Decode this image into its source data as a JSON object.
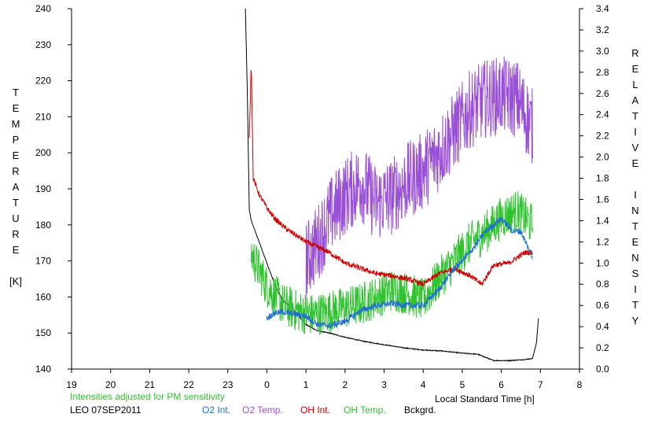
{
  "chart_data": {
    "type": "line",
    "xlabel": "Local Standard Time [h]",
    "left_axis": {
      "label": "TEMPERATURE",
      "unit": "[K]",
      "range": [
        140,
        240
      ],
      "ticks": [
        140,
        150,
        160,
        170,
        180,
        190,
        200,
        210,
        220,
        230,
        240
      ]
    },
    "right_axis": {
      "label": "RELATIVE INTENSITY",
      "range": [
        0.0,
        3.4
      ],
      "ticks": [
        "0.0",
        "0.2",
        "0.4",
        "0.6",
        "0.8",
        "1.0",
        "1.2",
        "1.4",
        "1.6",
        "1.8",
        "2.0",
        "2.2",
        "2.4",
        "2.6",
        "2.8",
        "3.0",
        "3.2",
        "3.4"
      ]
    },
    "x_range": [
      19,
      32
    ],
    "x_ticks": [
      "19",
      "20",
      "21",
      "22",
      "23",
      "0",
      "1",
      "2",
      "3",
      "4",
      "5",
      "6",
      "7",
      "8"
    ],
    "grid": false,
    "note": "Intensities adjusted for PM sensitivity",
    "station": "LEO 07SEP2011",
    "series": [
      {
        "name": "O2 Int.",
        "axis": "right",
        "color": "#1f6fd0",
        "noise": 0.03,
        "x": [
          24.0,
          24.2,
          24.4,
          24.7,
          25.0,
          25.3,
          25.6,
          26.0,
          26.4,
          26.8,
          27.2,
          27.6,
          28.0,
          28.4,
          28.8,
          29.2,
          29.6,
          30.0,
          30.3,
          30.5,
          30.8
        ],
        "y": [
          0.48,
          0.53,
          0.54,
          0.52,
          0.5,
          0.42,
          0.41,
          0.45,
          0.55,
          0.6,
          0.62,
          0.6,
          0.6,
          0.75,
          0.95,
          1.1,
          1.3,
          1.42,
          1.3,
          1.3,
          1.05
        ]
      },
      {
        "name": "O2 Temp.",
        "axis": "left",
        "color": "#9a4fd8",
        "noise": 11,
        "x": [
          25.0,
          25.3,
          25.6,
          26.0,
          26.4,
          26.8,
          27.2,
          27.6,
          28.0,
          28.4,
          28.8,
          29.2,
          29.6,
          30.0,
          30.4,
          30.8
        ],
        "y": [
          170,
          175,
          182,
          188,
          192,
          186,
          188,
          192,
          195,
          200,
          206,
          212,
          215,
          216,
          215,
          207
        ]
      },
      {
        "name": "OH Int.",
        "axis": "right",
        "color": "#d00000",
        "noise": 0.025,
        "x": [
          23.55,
          23.6,
          23.65,
          23.8,
          24.0,
          24.2,
          24.5,
          24.8,
          25.0,
          25.3,
          25.6,
          26.0,
          26.4,
          26.8,
          27.2,
          27.6,
          28.0,
          28.4,
          28.8,
          29.2,
          29.5,
          29.8,
          30.2,
          30.6,
          30.8
        ],
        "y": [
          2.2,
          2.9,
          1.8,
          1.65,
          1.52,
          1.42,
          1.32,
          1.25,
          1.2,
          1.15,
          1.1,
          1.0,
          0.95,
          0.9,
          0.88,
          0.85,
          0.8,
          0.9,
          0.95,
          0.88,
          0.8,
          0.98,
          1.0,
          1.1,
          1.1
        ]
      },
      {
        "name": "OH Temp.",
        "axis": "left",
        "color": "#2fc42f",
        "noise": 6,
        "x": [
          23.6,
          24.0,
          24.4,
          24.8,
          25.2,
          25.6,
          26.0,
          26.4,
          26.8,
          27.2,
          27.6,
          28.0,
          28.4,
          28.8,
          29.2,
          29.6,
          30.0,
          30.4,
          30.8
        ],
        "y": [
          172,
          163,
          158,
          156,
          155,
          156,
          157,
          158,
          160,
          162,
          161,
          159,
          165,
          170,
          175,
          178,
          182,
          184,
          180
        ]
      },
      {
        "name": "Bckgrd.",
        "axis": "right",
        "color": "#000000",
        "noise": 0.004,
        "x": [
          23.45,
          23.5,
          23.55,
          23.6,
          23.7,
          23.8,
          24.0,
          24.2,
          24.4,
          24.7,
          25.0,
          25.3,
          25.6,
          26.0,
          26.5,
          27.0,
          27.5,
          28.0,
          28.5,
          29.0,
          29.4,
          29.8,
          30.2,
          30.6,
          30.8,
          30.9,
          30.95
        ],
        "y": [
          3.4,
          2.6,
          1.5,
          1.4,
          1.3,
          1.2,
          1.0,
          0.8,
          0.65,
          0.55,
          0.42,
          0.36,
          0.34,
          0.3,
          0.26,
          0.23,
          0.2,
          0.18,
          0.17,
          0.15,
          0.14,
          0.08,
          0.08,
          0.09,
          0.1,
          0.25,
          0.48
        ]
      }
    ]
  }
}
